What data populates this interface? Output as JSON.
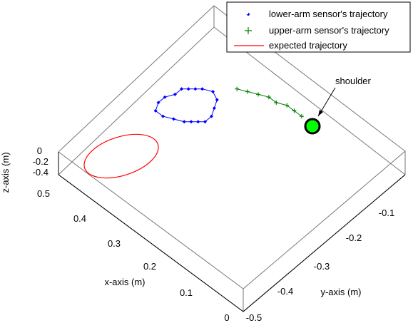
{
  "chart_data": {
    "type": "scatter",
    "title": "",
    "xlabel": "x-axis (m)",
    "ylabel": "y-axis (m)",
    "zlabel": "z-axis (m)",
    "x_ticks": [
      "0",
      "0.1",
      "0.2",
      "0.3",
      "0.4",
      "0.5"
    ],
    "y_ticks": [
      "-0.5",
      "-0.4",
      "-0.3",
      "-0.2",
      "-0.1"
    ],
    "z_ticks": [
      "0",
      "-0.2",
      "-0.4"
    ],
    "xlim": [
      0,
      0.5
    ],
    "ylim": [
      -0.5,
      0
    ],
    "zlim": [
      -0.45,
      0
    ],
    "grid": false,
    "legend_position": "top-right",
    "legend": [
      {
        "name": "lower-arm sensor's trajectory",
        "marker": "dot",
        "color": "#0000ff"
      },
      {
        "name": "upper-arm sensor's trajectory",
        "marker": "plus",
        "color": "#007f00"
      },
      {
        "name": "expected trajectory",
        "marker": "line",
        "color": "#ff0000"
      }
    ],
    "annotation": {
      "text": "shoulder",
      "point": {
        "x": 0.36,
        "y": -0.02,
        "z": 0
      },
      "color": "#00ff00"
    },
    "series": [
      {
        "name": "lower-arm sensor's trajectory",
        "color": "#0000ff",
        "marker": "dot",
        "points": [
          {
            "x": 0.44,
            "y": -0.26,
            "z": 0
          },
          {
            "x": 0.44,
            "y": -0.24,
            "z": 0
          },
          {
            "x": 0.43,
            "y": -0.22,
            "z": 0
          },
          {
            "x": 0.43,
            "y": -0.2,
            "z": 0
          },
          {
            "x": 0.42,
            "y": -0.19,
            "z": 0
          },
          {
            "x": 0.41,
            "y": -0.18,
            "z": 0
          },
          {
            "x": 0.4,
            "y": -0.17,
            "z": 0
          },
          {
            "x": 0.38,
            "y": -0.16,
            "z": 0
          },
          {
            "x": 0.36,
            "y": -0.17,
            "z": 0
          },
          {
            "x": 0.35,
            "y": -0.19,
            "z": 0
          },
          {
            "x": 0.34,
            "y": -0.21,
            "z": 0
          },
          {
            "x": 0.34,
            "y": -0.23,
            "z": 0
          },
          {
            "x": 0.35,
            "y": -0.24,
            "z": 0
          },
          {
            "x": 0.36,
            "y": -0.25,
            "z": 0
          },
          {
            "x": 0.37,
            "y": -0.26,
            "z": 0
          },
          {
            "x": 0.39,
            "y": -0.27,
            "z": 0
          },
          {
            "x": 0.41,
            "y": -0.28,
            "z": 0
          },
          {
            "x": 0.43,
            "y": -0.28,
            "z": 0
          }
        ]
      },
      {
        "name": "upper-arm sensor's trajectory",
        "color": "#007f00",
        "marker": "plus",
        "points": [
          {
            "x": 0.35,
            "y": -0.12,
            "z": 0
          },
          {
            "x": 0.33,
            "y": -0.11,
            "z": 0
          },
          {
            "x": 0.31,
            "y": -0.1,
            "z": 0
          },
          {
            "x": 0.29,
            "y": -0.09,
            "z": 0
          },
          {
            "x": 0.27,
            "y": -0.09,
            "z": 0
          },
          {
            "x": 0.25,
            "y": -0.08,
            "z": 0
          },
          {
            "x": 0.23,
            "y": -0.08,
            "z": 0
          },
          {
            "x": 0.21,
            "y": -0.08,
            "z": 0
          }
        ]
      }
    ]
  }
}
